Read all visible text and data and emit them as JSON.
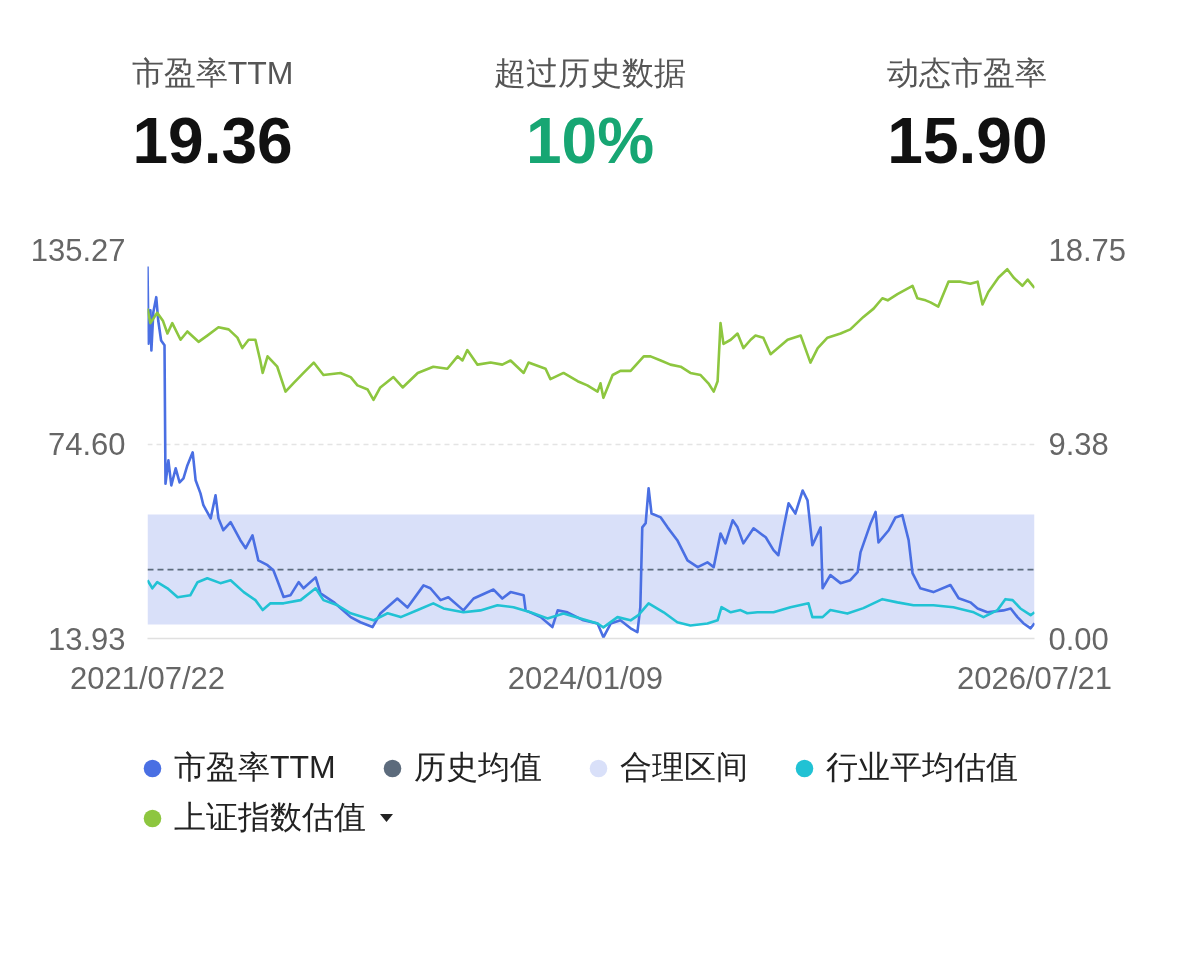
{
  "chart_data": [
    {
      "type": "other",
      "categories": [
        "市盈率TTM",
        "超过历史数据",
        "动态市盈率"
      ],
      "value_labels": [
        "19.36",
        "10%",
        "15.90"
      ]
    },
    {
      "type": "line",
      "xlim": [
        "2021-07-22",
        "2026-07-21"
      ],
      "xticks": [
        {
          "value": "2021-07-22",
          "label": "2021/07/22"
        },
        {
          "value": "2024-01-09",
          "label": "2024/01/09"
        },
        {
          "value": "2026-07-21",
          "label": "2026/07/21"
        }
      ],
      "ylim": [
        13.93,
        135.27
      ],
      "yticks": [
        13.93,
        {
          "value": 74.6,
          "label": "74.60"
        },
        135.27
      ],
      "y2lim": [
        0,
        18.75
      ],
      "y2ticks": [
        {
          "value": 0,
          "label": "0.00"
        },
        9.38,
        18.75
      ],
      "grid": "y",
      "legend": "bottom",
      "series": [
        {
          "name": "市盈率TTM",
          "color": "#4a6fe3",
          "x": [
            "2021-07-22",
            "2021-07-24",
            "2021-07-28",
            "2021-07-30",
            "2021-08-03",
            "2021-08-09",
            "2021-08-13",
            "2021-08-19",
            "2021-08-26",
            "2021-08-28",
            "2021-09-03",
            "2021-09-09",
            "2021-09-18",
            "2021-09-26",
            "2021-10-04",
            "2021-10-12",
            "2021-10-23",
            "2021-10-29",
            "2021-11-08",
            "2021-11-14",
            "2021-11-29",
            "2021-12-09",
            "2021-12-15",
            "2021-12-25",
            "2022-01-09",
            "2022-01-29",
            "2022-02-09",
            "2022-02-23",
            "2022-03-07",
            "2022-03-26",
            "2022-04-07",
            "2022-04-15",
            "2022-04-28",
            "2022-05-12",
            "2022-05-29",
            "2022-06-08",
            "2022-07-03",
            "2022-07-13",
            "2022-08-09",
            "2022-09-13",
            "2022-10-03",
            "2022-10-28",
            "2022-11-13",
            "2022-12-18",
            "2023-01-08",
            "2023-02-10",
            "2023-02-24",
            "2023-03-17",
            "2023-04-02",
            "2023-05-03",
            "2023-05-24",
            "2023-07-04",
            "2023-07-22",
            "2023-08-08",
            "2023-09-04",
            "2023-09-08",
            "2023-10-09",
            "2023-11-02",
            "2023-11-13",
            "2023-12-03",
            "2024-01-05",
            "2024-02-03",
            "2024-02-15",
            "2024-03-01",
            "2024-03-21",
            "2024-04-11",
            "2024-04-25",
            "2024-05-01",
            "2024-05-05",
            "2024-05-12",
            "2024-05-18",
            "2024-05-24",
            "2024-06-12",
            "2024-06-26",
            "2024-07-16",
            "2024-08-06",
            "2024-08-27",
            "2024-09-16",
            "2024-09-29",
            "2024-10-13",
            "2024-10-23",
            "2024-11-07",
            "2024-11-17",
            "2024-11-29",
            "2024-12-20",
            "2025-01-14",
            "2025-01-30",
            "2025-02-09",
            "2025-02-20",
            "2025-03-02",
            "2025-03-16",
            "2025-03-31",
            "2025-04-10",
            "2025-04-20",
            "2025-05-07",
            "2025-05-11",
            "2025-05-27",
            "2025-06-17",
            "2025-07-07",
            "2025-07-22",
            "2025-07-28",
            "2025-08-18",
            "2025-08-28",
            "2025-09-03",
            "2025-09-24",
            "2025-10-08",
            "2025-10-22",
            "2025-11-04",
            "2025-11-12",
            "2025-11-28",
            "2025-12-25",
            "2026-01-29",
            "2026-02-15",
            "2026-03-11",
            "2026-03-26",
            "2026-04-15",
            "2026-05-18",
            "2026-06-02",
            "2026-06-16",
            "2026-06-28",
            "2026-07-13",
            "2026-07-21"
          ],
          "values": [
            130.0,
            105.9,
            116.3,
            103.8,
            115.7,
            120.4,
            113.2,
            106.9,
            105.4,
            62.2,
            69.5,
            61.7,
            67.0,
            62.6,
            63.9,
            67.9,
            72.0,
            63.3,
            59.2,
            55.5,
            51.4,
            58.6,
            51.4,
            47.7,
            50.2,
            44.6,
            42.1,
            46.1,
            38.3,
            36.8,
            35.2,
            32.1,
            26.9,
            27.4,
            31.5,
            29.6,
            33.0,
            28.0,
            25.3,
            20.6,
            19.0,
            17.5,
            21.7,
            26.4,
            23.6,
            30.5,
            29.6,
            25.9,
            26.8,
            22.7,
            26.4,
            29.2,
            26.4,
            28.4,
            27.4,
            22.7,
            20.6,
            17.5,
            22.7,
            22.1,
            19.6,
            18.6,
            14.3,
            18.6,
            19.6,
            17.1,
            15.9,
            23.7,
            48.6,
            49.9,
            60.8,
            52.9,
            51.7,
            48.6,
            44.6,
            38.3,
            36.2,
            37.7,
            36.2,
            46.7,
            43.6,
            50.8,
            48.6,
            43.6,
            48.3,
            45.5,
            41.5,
            39.9,
            48.6,
            56.1,
            52.9,
            60.1,
            57.0,
            43.0,
            48.6,
            29.6,
            33.7,
            31.2,
            32.1,
            34.6,
            40.8,
            49.9,
            53.4,
            43.9,
            47.7,
            51.7,
            52.4,
            44.6,
            34.3,
            29.6,
            28.4,
            30.6,
            26.5,
            25.2,
            23.3,
            22.1,
            22.7,
            23.3,
            20.6,
            18.7,
            17.1,
            18.7
          ]
        },
        {
          "name": "行业平均估值",
          "color": "#21c2d4",
          "x": [
            "2021-07-22",
            "2021-08-01",
            "2021-08-11",
            "2021-09-01",
            "2021-09-22",
            "2021-10-18",
            "2021-11-02",
            "2021-11-22",
            "2021-12-19",
            "2022-01-09",
            "2022-02-05",
            "2022-03-01",
            "2022-03-16",
            "2022-04-01",
            "2022-04-28",
            "2022-06-02",
            "2022-07-03",
            "2022-07-19",
            "2022-08-17",
            "2022-09-13",
            "2022-10-18",
            "2022-10-30",
            "2022-11-28",
            "2022-12-25",
            "2023-01-29",
            "2023-03-02",
            "2023-03-23",
            "2023-05-03",
            "2023-06-07",
            "2023-07-12",
            "2023-08-14",
            "2023-09-18",
            "2023-10-23",
            "2023-11-25",
            "2023-12-30",
            "2024-02-03",
            "2024-02-15",
            "2024-03-15",
            "2024-04-11",
            "2024-04-27",
            "2024-05-18",
            "2024-06-18",
            "2024-07-16",
            "2024-08-12",
            "2024-09-16",
            "2024-10-07",
            "2024-10-15",
            "2024-11-03",
            "2024-11-23",
            "2024-12-07",
            "2024-12-28",
            "2025-01-30",
            "2025-03-06",
            "2025-04-12",
            "2025-04-20",
            "2025-05-11",
            "2025-05-27",
            "2025-07-01",
            "2025-08-03",
            "2025-09-11",
            "2025-10-12",
            "2025-11-14",
            "2025-12-25",
            "2026-02-04",
            "2026-03-18",
            "2026-04-07",
            "2026-05-06",
            "2026-05-22",
            "2026-06-06",
            "2026-06-22",
            "2026-07-13",
            "2026-07-21"
          ],
          "values": [
            32.1,
            29.6,
            31.5,
            29.6,
            26.8,
            27.4,
            31.5,
            32.7,
            31.2,
            32.1,
            28.4,
            25.9,
            22.8,
            24.9,
            24.9,
            25.9,
            29.6,
            25.9,
            24.3,
            21.8,
            20.2,
            19.6,
            21.8,
            20.6,
            22.8,
            24.9,
            23.3,
            22.1,
            22.7,
            24.3,
            23.7,
            22.1,
            20.2,
            21.7,
            20.2,
            18.6,
            17.4,
            20.6,
            19.6,
            21.2,
            24.9,
            22.1,
            19.0,
            18.0,
            18.6,
            19.6,
            23.7,
            22.1,
            22.8,
            21.8,
            22.1,
            22.1,
            23.7,
            24.9,
            20.6,
            20.6,
            22.8,
            21.7,
            23.4,
            26.2,
            25.2,
            24.3,
            24.3,
            23.7,
            22.1,
            20.6,
            22.8,
            26.2,
            25.9,
            23.3,
            21.2,
            22.1
          ]
        },
        {
          "name": "上证指数估值",
          "color": "#8dc63f",
          "axis": "y2",
          "x": [
            "2021-07-22",
            "2021-07-28",
            "2021-08-11",
            "2021-08-23",
            "2021-09-01",
            "2021-09-11",
            "2021-09-28",
            "2021-10-12",
            "2021-11-04",
            "2021-11-22",
            "2021-12-15",
            "2022-01-05",
            "2022-01-23",
            "2022-02-02",
            "2022-02-15",
            "2022-03-01",
            "2022-03-11",
            "2022-03-16",
            "2022-03-26",
            "2022-04-15",
            "2022-05-02",
            "2022-05-18",
            "2022-06-08",
            "2022-06-29",
            "2022-07-19",
            "2022-08-23",
            "2022-09-13",
            "2022-09-27",
            "2022-10-18",
            "2022-10-30",
            "2022-11-13",
            "2022-12-10",
            "2022-12-29",
            "2023-01-29",
            "2023-03-02",
            "2023-03-31",
            "2023-04-21",
            "2023-05-01",
            "2023-05-11",
            "2023-06-01",
            "2023-06-28",
            "2023-07-22",
            "2023-08-08",
            "2023-09-04",
            "2023-09-14",
            "2023-10-19",
            "2023-10-29",
            "2023-11-25",
            "2023-12-24",
            "2024-01-13",
            "2024-02-03",
            "2024-02-09",
            "2024-02-15",
            "2024-03-05",
            "2024-03-21",
            "2024-04-11",
            "2024-05-08",
            "2024-05-22",
            "2024-06-12",
            "2024-07-02",
            "2024-07-23",
            "2024-08-12",
            "2024-09-02",
            "2024-09-18",
            "2024-09-29",
            "2024-10-07",
            "2024-10-13",
            "2024-10-19",
            "2024-11-03",
            "2024-11-17",
            "2024-11-29",
            "2024-12-14",
            "2024-12-24",
            "2025-01-09",
            "2025-01-24",
            "2025-02-28",
            "2025-03-27",
            "2025-04-16",
            "2025-05-01",
            "2025-05-21",
            "2025-06-17",
            "2025-07-07",
            "2025-08-03",
            "2025-08-24",
            "2025-09-11",
            "2025-09-22",
            "2025-10-12",
            "2025-11-12",
            "2025-11-22",
            "2025-12-09",
            "2025-12-19",
            "2026-01-04",
            "2026-01-25",
            "2026-02-19",
            "2026-03-11",
            "2026-03-26",
            "2026-04-05",
            "2026-04-17",
            "2026-05-08",
            "2026-05-26",
            "2026-06-08",
            "2026-06-26",
            "2026-07-07",
            "2026-07-21"
          ],
          "values": [
            15.9,
            15.2,
            15.7,
            15.3,
            14.7,
            15.2,
            14.4,
            14.8,
            14.3,
            14.6,
            15.0,
            14.9,
            14.5,
            14.0,
            14.4,
            14.4,
            13.4,
            12.8,
            13.6,
            13.1,
            11.9,
            12.3,
            12.8,
            13.3,
            12.7,
            12.8,
            12.6,
            12.2,
            12.0,
            11.5,
            12.1,
            12.6,
            12.1,
            12.8,
            13.1,
            13.0,
            13.6,
            13.4,
            13.9,
            13.2,
            13.3,
            13.2,
            13.4,
            12.8,
            13.3,
            13.0,
            12.5,
            12.8,
            12.4,
            12.2,
            11.9,
            12.3,
            11.6,
            12.7,
            12.9,
            12.9,
            13.6,
            13.6,
            13.4,
            13.2,
            13.1,
            12.8,
            12.7,
            12.3,
            11.9,
            12.4,
            15.2,
            14.2,
            14.4,
            14.7,
            14.0,
            14.4,
            14.6,
            14.5,
            13.7,
            14.4,
            14.6,
            13.3,
            14.0,
            14.5,
            14.7,
            14.9,
            15.5,
            15.9,
            16.4,
            16.3,
            16.6,
            17.0,
            16.4,
            16.3,
            16.2,
            16.0,
            17.2,
            17.2,
            17.1,
            17.2,
            16.1,
            16.7,
            17.4,
            17.8,
            17.4,
            17.0,
            17.3,
            16.9
          ]
        }
      ],
      "ref_lines": [
        {
          "axis": "y",
          "value": 35.4,
          "label": "历史均值",
          "color": "#5c6b7c",
          "line_style": "dashed"
        }
      ],
      "bands": [
        {
          "axis": "y",
          "from": 18.3,
          "to": 52.6,
          "label": "合理区间",
          "color": "#d9e0f9"
        }
      ]
    }
  ]
}
